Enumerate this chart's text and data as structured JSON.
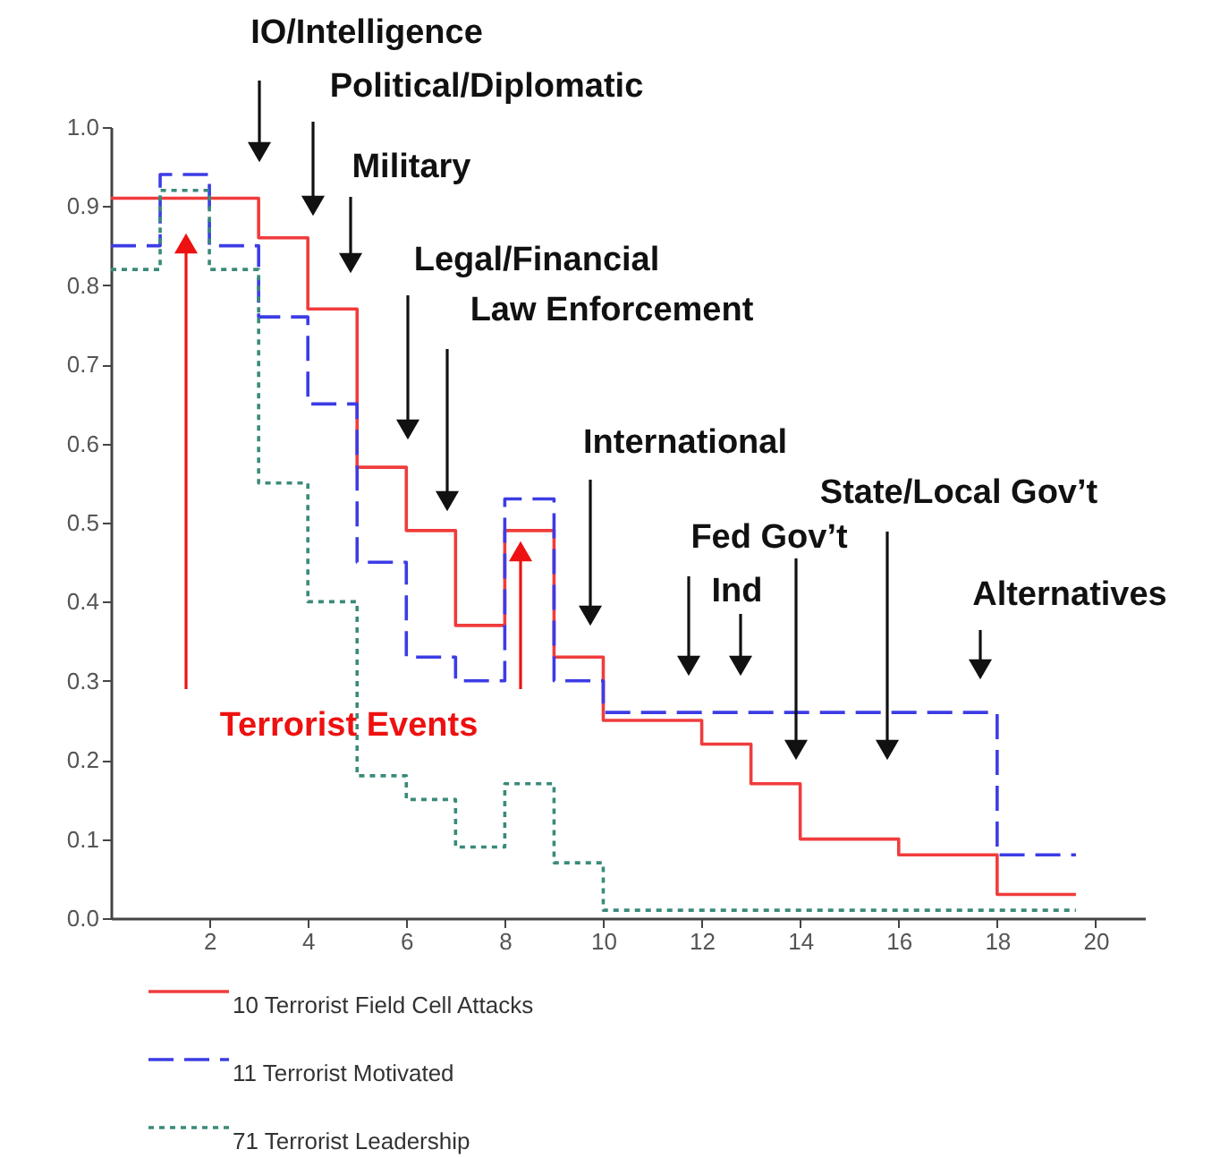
{
  "chart_data": {
    "type": "step",
    "x": [
      0,
      1,
      2,
      3,
      4,
      5,
      6,
      7,
      8,
      9,
      10,
      11,
      12,
      13,
      14,
      15,
      16,
      17,
      18,
      19,
      19.6
    ],
    "series": [
      {
        "name": "10 Terrorist Field Cell Attacks",
        "color": "#f03c3c",
        "line_style": "solid",
        "values": [
          0.91,
          0.91,
          0.91,
          0.86,
          0.77,
          0.57,
          0.49,
          0.37,
          0.49,
          0.33,
          0.25,
          0.25,
          0.22,
          0.17,
          0.1,
          0.1,
          0.08,
          0.08,
          0.03,
          0.03,
          0.03
        ]
      },
      {
        "name": "11 Terrorist Motivated",
        "color": "#3c3ce6",
        "line_style": "dashed",
        "values": [
          0.85,
          0.94,
          0.85,
          0.76,
          0.65,
          0.45,
          0.33,
          0.3,
          0.53,
          0.3,
          0.26,
          0.26,
          0.26,
          0.26,
          0.26,
          0.26,
          0.26,
          0.26,
          0.08,
          0.08,
          0.08
        ]
      },
      {
        "name": "71 Terrorist Leadership",
        "color": "#3a8a7a",
        "line_style": "dotted",
        "values": [
          0.82,
          0.92,
          0.82,
          0.55,
          0.4,
          0.18,
          0.15,
          0.09,
          0.17,
          0.07,
          0.01,
          0.01,
          0.01,
          0.01,
          0.01,
          0.01,
          0.01,
          0.01,
          0.01,
          0.01,
          0.01
        ]
      }
    ],
    "xlim": [
      0,
      21
    ],
    "xticks": [
      2,
      4,
      6,
      8,
      10,
      12,
      14,
      16,
      18,
      20
    ],
    "ylim": [
      0,
      1.0
    ],
    "yticks": [
      {
        "value": 0,
        "label": "0.0"
      },
      {
        "value": 0.1,
        "label": "0.1"
      },
      {
        "value": 0.2,
        "label": "0.2"
      },
      {
        "value": 0.3,
        "label": "0.3"
      },
      {
        "value": 0.4,
        "label": "0.4"
      },
      {
        "value": 0.5,
        "label": "0.5"
      },
      {
        "value": 0.6,
        "label": "0.6"
      },
      {
        "value": 0.7,
        "label": "0.7"
      },
      {
        "value": 0.8,
        "label": "0.8"
      },
      {
        "value": 0.9,
        "label": "0.9"
      },
      {
        "value": 1.0,
        "label": "1.0"
      }
    ],
    "annotations": [
      "IO/Intelligence",
      "Political/Diplomatic",
      "Military",
      "Legal/Financial",
      "Law Enforcement",
      "International",
      "Fed Gov’t",
      "Ind",
      "State/Local Gov’t",
      "Alternatives",
      "Terrorist Events"
    ],
    "grid": false,
    "marker": "none",
    "legend": "bottom"
  }
}
